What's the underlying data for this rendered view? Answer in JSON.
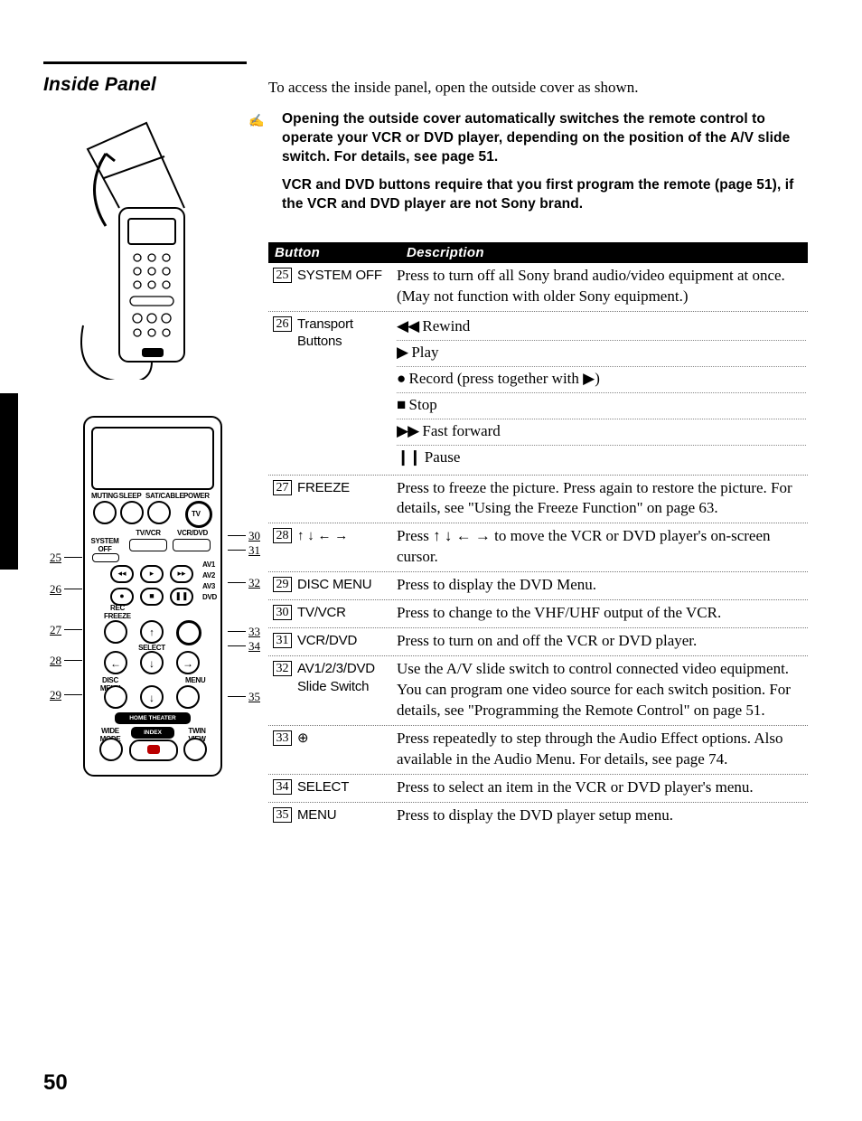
{
  "section_title": "Inside Panel",
  "intro": "To access the inside panel, open the outside cover as shown.",
  "note_icon": "✍",
  "note1": "Opening the outside cover automatically switches the remote control to operate your VCR or DVD player, depending on the position of the A/V slide switch. For details, see page 51.",
  "note2": "VCR and DVD buttons require that you first program the remote (page 51), if the VCR and DVD player are not Sony brand.",
  "table": {
    "header_button": "Button",
    "header_description": "Description",
    "rows": [
      {
        "num": "25",
        "button": "SYSTEM OFF",
        "desc": "Press to turn off all Sony brand audio/video equipment at once. (May not function with older Sony equipment.)"
      },
      {
        "num": "26",
        "button": "Transport Buttons",
        "sublines": [
          {
            "sym": "◀◀",
            "text": " Rewind"
          },
          {
            "sym": "▶",
            "text": " Play"
          },
          {
            "sym": "●",
            "text": " Record (press together with ▶)"
          },
          {
            "sym": "■",
            "text": " Stop"
          },
          {
            "sym": "▶▶",
            "text": " Fast forward"
          },
          {
            "sym": "❙❙",
            "text": " Pause"
          }
        ]
      },
      {
        "num": "27",
        "button": "FREEZE",
        "desc": "Press to freeze the picture. Press again to restore the picture. For details, see \"Using the Freeze Function\" on page 63."
      },
      {
        "num": "28",
        "button": "↑ ↓ ← →",
        "desc": "Press ↑ ↓ ← → to move the VCR or DVD player's on-screen cursor."
      },
      {
        "num": "29",
        "button": "DISC MENU",
        "desc": "Press to display the DVD Menu."
      },
      {
        "num": "30",
        "button": "TV/VCR",
        "desc": "Press to change to the VHF/UHF output of the VCR."
      },
      {
        "num": "31",
        "button": "VCR/DVD",
        "desc": "Press to turn on and off the VCR or DVD player."
      },
      {
        "num": "32",
        "button": "AV1/2/3/DVD Slide Switch",
        "desc": "Use the A/V slide switch to control connected video equipment. You can program one video source for each switch position. For details, see \"Programming the Remote Control\" on page 51."
      },
      {
        "num": "33",
        "button": "⊕",
        "desc": "Press repeatedly to step through the Audio Effect options. Also available in the Audio Menu. For details, see page 74."
      },
      {
        "num": "34",
        "button": "SELECT",
        "desc": "Press to select an item in the VCR or DVD player's menu."
      },
      {
        "num": "35",
        "button": "MENU",
        "desc": "Press to display the DVD player setup menu."
      }
    ]
  },
  "diagram": {
    "toprow_labels": [
      "MUTING",
      "SLEEP",
      "SAT/CABLE",
      "POWER"
    ],
    "tv_label": "TV",
    "slide_left": "TV/VCR",
    "slide_right": "VCR/DVD",
    "system_off": "SYSTEM\nOFF",
    "av_labels": [
      "AV1",
      "AV2",
      "AV3",
      "DVD"
    ],
    "rec": "REC",
    "freeze": "FREEZE",
    "select": "SELECT",
    "disc_menu": "DISC MENU",
    "menu": "MENU",
    "htc": "HOME THEATER CONTROL",
    "wide_mode": "WIDE MODE",
    "index": "INDEX",
    "twin_view": "TWIN VIEW",
    "callouts_left": [
      "25",
      "26",
      "27",
      "28",
      "29"
    ],
    "callouts_right": [
      "30",
      "31",
      "32",
      "33",
      "34",
      "35"
    ]
  },
  "page_number": "50",
  "style": {
    "body_font": "Georgia/Times",
    "heading_font": "Arial bold italic",
    "body_size_pt": 13,
    "heading_size_pt": 16,
    "note_size_pt": 11.5,
    "table_header_bg": "#000000",
    "table_header_fg": "#ffffff",
    "dotted_rule": "#777777",
    "page_bg": "#ffffff"
  }
}
